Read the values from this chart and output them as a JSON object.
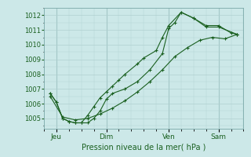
{
  "xlabel": "Pression niveau de la mer( hPa )",
  "background_color": "#cce8e8",
  "plot_bg_color": "#cce8e8",
  "grid_color": "#b0d0d0",
  "line_color": "#1a6020",
  "ylim": [
    1004.3,
    1012.5
  ],
  "yticks": [
    1005,
    1006,
    1007,
    1008,
    1009,
    1010,
    1011,
    1012
  ],
  "xtick_labels": [
    "Jeu",
    "Dim",
    "Ven",
    "Sam"
  ],
  "xtick_pos": [
    1,
    5,
    10,
    14
  ],
  "xlim": [
    0,
    16
  ],
  "series1": {
    "x": [
      0.5,
      1.0,
      1.5,
      2.0,
      2.5,
      3.0,
      3.5,
      4.0,
      4.5,
      5.0,
      5.5,
      6.5,
      7.5,
      8.5,
      9.5,
      10.0,
      10.5,
      11.0,
      12.0,
      13.0,
      14.0,
      15.0,
      15.5
    ],
    "y": [
      1006.7,
      1006.1,
      1005.0,
      1004.8,
      1004.7,
      1004.7,
      1004.7,
      1005.0,
      1005.5,
      1006.3,
      1006.7,
      1007.0,
      1007.5,
      1008.3,
      1009.4,
      1011.1,
      1011.5,
      1012.2,
      1011.8,
      1011.3,
      1011.3,
      1010.8,
      1010.7
    ]
  },
  "series2": {
    "x": [
      0.5,
      1.0,
      1.5,
      2.0,
      2.5,
      3.0,
      3.5,
      4.0,
      4.5,
      5.0,
      5.5,
      6.0,
      6.5,
      7.5,
      8.0,
      9.0,
      9.5,
      10.0,
      11.0,
      12.0,
      13.0,
      14.0,
      15.5
    ],
    "y": [
      1006.7,
      1006.1,
      1005.0,
      1004.8,
      1004.7,
      1004.7,
      1005.2,
      1005.8,
      1006.4,
      1006.8,
      1007.2,
      1007.6,
      1008.0,
      1008.7,
      1009.1,
      1009.6,
      1010.5,
      1011.3,
      1012.2,
      1011.8,
      1011.2,
      1011.2,
      1010.7
    ]
  },
  "series3": {
    "x": [
      0.5,
      1.5,
      2.5,
      3.5,
      4.5,
      5.5,
      6.5,
      7.5,
      8.5,
      9.5,
      10.5,
      11.5,
      12.5,
      13.5,
      14.5,
      15.5
    ],
    "y": [
      1006.5,
      1005.1,
      1004.9,
      1005.0,
      1005.3,
      1005.7,
      1006.2,
      1006.8,
      1007.5,
      1008.3,
      1009.2,
      1009.8,
      1010.3,
      1010.5,
      1010.4,
      1010.7
    ]
  }
}
